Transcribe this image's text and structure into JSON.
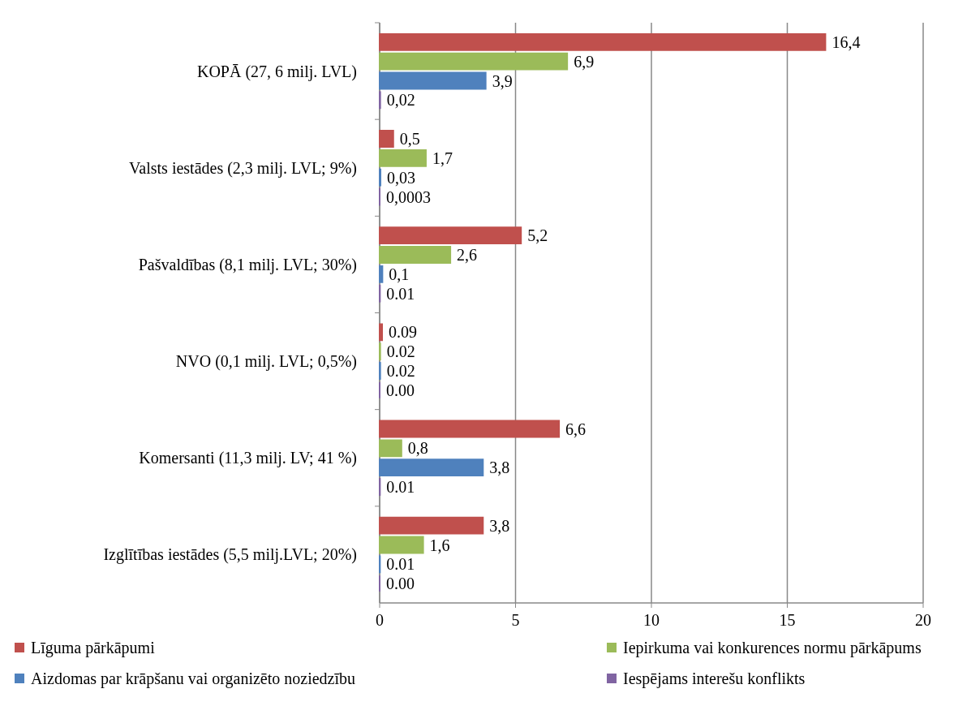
{
  "chart_data": {
    "type": "bar",
    "orientation": "horizontal",
    "categories": [
      "KOPĀ (27, 6 milj. LVL)",
      "Valsts iestādes (2,3 milj. LVL; 9%)",
      "Pašvaldības (8,1 milj. LVL; 30%)",
      "NVO (0,1 milj. LVL; 0,5%)",
      "Komersanti (11,3 milj. LV; 41 %)",
      "Izglītības iestādes (5,5 milj.LVL; 20%)"
    ],
    "series": [
      {
        "name": "Līguma pārkāpumi",
        "color": "#c0504d",
        "values": [
          16.4,
          0.5,
          5.2,
          0.09,
          6.6,
          3.8
        ],
        "value_labels": [
          "16,4",
          "0,5",
          "5,2",
          "0.09",
          "6,6",
          "3,8"
        ]
      },
      {
        "name": "Iepirkuma vai konkurences normu pārkāpums",
        "color": "#9bbb59",
        "values": [
          6.9,
          1.7,
          2.6,
          0.02,
          0.8,
          1.6
        ],
        "value_labels": [
          "6,9",
          "1,7",
          "2,6",
          "0.02",
          "0,8",
          "1,6"
        ]
      },
      {
        "name": "Aizdomas par krāpšanu vai organizēto noziedzību",
        "color": "#4f81bd",
        "values": [
          3.9,
          0.03,
          0.1,
          0.02,
          3.8,
          0.01
        ],
        "value_labels": [
          "3,9",
          "0,03",
          "0,1",
          "0.02",
          "3,8",
          "0.01"
        ]
      },
      {
        "name": "Iespējams interešu konflikts",
        "color": "#8064a2",
        "values": [
          0.02,
          0.0003,
          0.01,
          0.0,
          0.01,
          0.0
        ],
        "value_labels": [
          "0,02",
          "0,0003",
          "0.01",
          "0.00",
          "0.01",
          "0.00"
        ]
      }
    ],
    "xlim": [
      0,
      20
    ],
    "xticks": [
      0,
      5,
      10,
      15,
      20
    ],
    "grid": "x",
    "legend": "bottom"
  }
}
